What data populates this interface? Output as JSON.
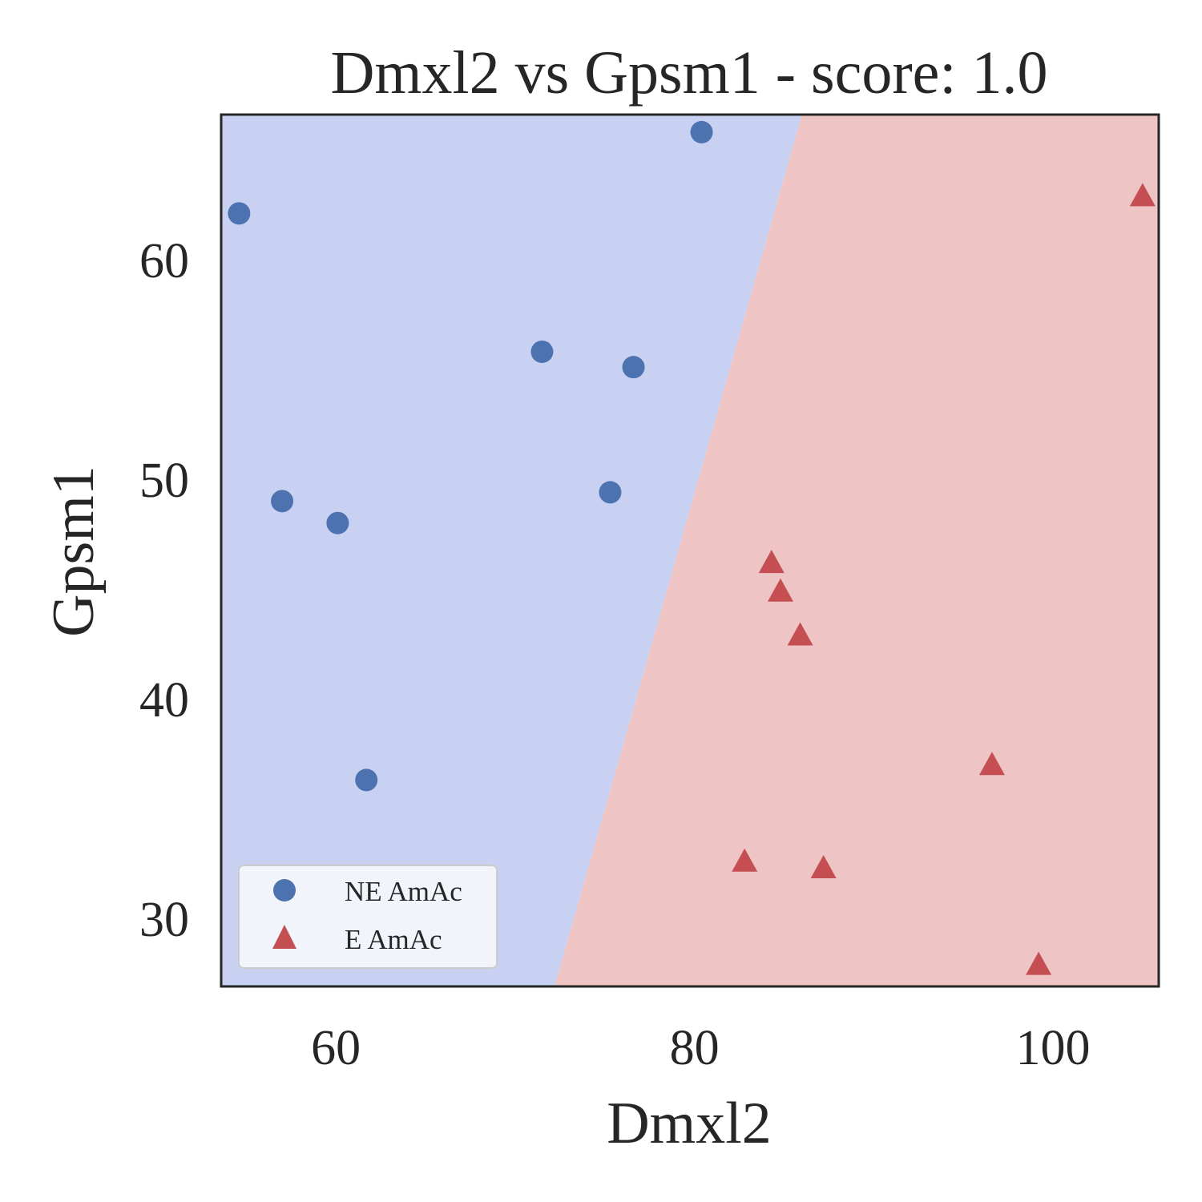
{
  "chart_data": {
    "type": "scatter",
    "title": "Dmxl2 vs Gpsm1 - score: 1.0",
    "xlabel": "Dmxl2",
    "ylabel": "Gpsm1",
    "xlim": [
      53.6,
      105.9
    ],
    "ylim": [
      26.9,
      66.6
    ],
    "xticks": [
      {
        "value": 60,
        "label": "60"
      },
      {
        "value": 80,
        "label": "80"
      },
      {
        "value": 100,
        "label": "100"
      }
    ],
    "yticks": [
      {
        "value": 30,
        "label": "30"
      },
      {
        "value": 40,
        "label": "40"
      },
      {
        "value": 50,
        "label": "50"
      },
      {
        "value": 60,
        "label": "60"
      }
    ],
    "grid": false,
    "legend_position": "lower-left",
    "decision_boundary": {
      "line": [
        [
          72.2,
          26.9
        ],
        [
          86.0,
          66.6
        ]
      ],
      "left_region_color": "#c8d1f1",
      "right_region_color": "#eec4c4"
    },
    "series": [
      {
        "name": "NE AmAc",
        "marker": "circle",
        "color": "#4c72b0",
        "points": [
          {
            "x": 54.6,
            "y": 62.1
          },
          {
            "x": 80.4,
            "y": 65.8
          },
          {
            "x": 71.5,
            "y": 55.8
          },
          {
            "x": 76.6,
            "y": 55.1
          },
          {
            "x": 57.0,
            "y": 49.0
          },
          {
            "x": 75.3,
            "y": 49.4
          },
          {
            "x": 60.1,
            "y": 48.0
          },
          {
            "x": 61.7,
            "y": 36.3
          }
        ]
      },
      {
        "name": "E AmAc",
        "marker": "triangle",
        "color": "#c44e52",
        "points": [
          {
            "x": 105.0,
            "y": 62.9
          },
          {
            "x": 84.3,
            "y": 46.2
          },
          {
            "x": 84.8,
            "y": 44.9
          },
          {
            "x": 85.9,
            "y": 42.9
          },
          {
            "x": 96.6,
            "y": 37.0
          },
          {
            "x": 82.8,
            "y": 32.6
          },
          {
            "x": 87.2,
            "y": 32.3
          },
          {
            "x": 99.2,
            "y": 27.9
          }
        ]
      }
    ]
  }
}
